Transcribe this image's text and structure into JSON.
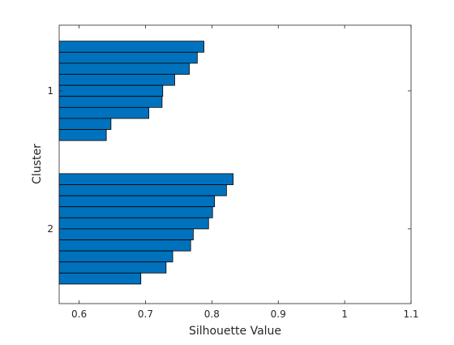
{
  "chart_data": {
    "type": "bar",
    "orientation": "horizontal",
    "xlabel": "Silhouette Value",
    "ylabel": "Cluster",
    "xlim": [
      0.57,
      1.1
    ],
    "xticks": [
      "0.6",
      "0.7",
      "0.8",
      "0.9",
      "1",
      "1.1"
    ],
    "bar_color": "#0072BD",
    "edge_color": "#000000",
    "grid": false,
    "clusters": [
      {
        "label": "1",
        "values": [
          0.788,
          0.778,
          0.766,
          0.744,
          0.726,
          0.725,
          0.705,
          0.648,
          0.641
        ]
      },
      {
        "label": "2",
        "values": [
          0.832,
          0.822,
          0.804,
          0.801,
          0.795,
          0.772,
          0.768,
          0.741,
          0.731,
          0.693
        ]
      }
    ]
  }
}
